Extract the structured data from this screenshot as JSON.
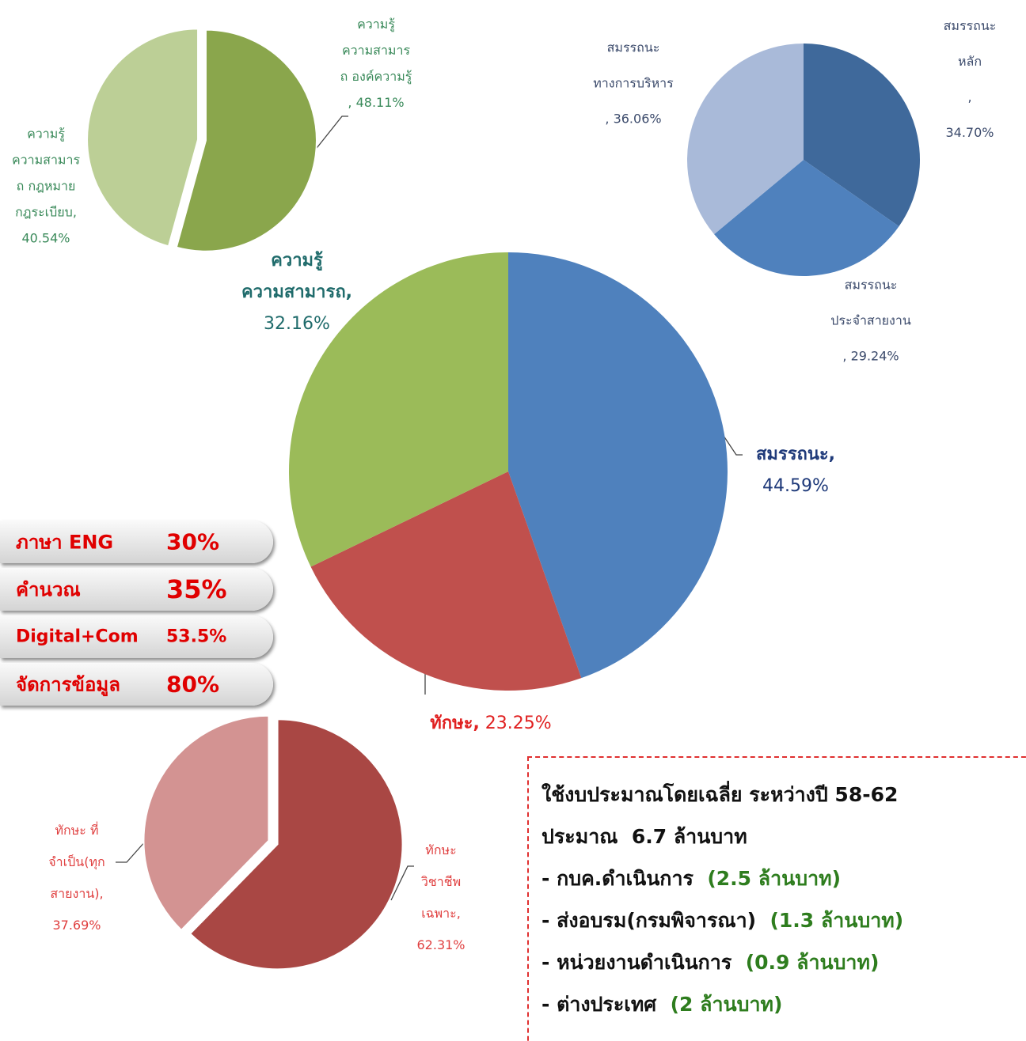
{
  "chart_data": [
    {
      "type": "pie",
      "categories": [
        "ความรู้\nความสามาร\nถ องค์ความรู้",
        "ความรู้\nความสามาร\nถ กฎหมาย\nกฎระเบียบ,"
      ],
      "values": [
        48.11,
        40.54
      ],
      "value_labels": [
        ", 48.11%",
        "40.54%"
      ],
      "colors": [
        "#8aa64c",
        "#bccf96"
      ]
    },
    {
      "type": "pie",
      "categories": [
        "สมรรถนะ หลัก",
        "สมรรถนะ\nประจำสายงาน",
        "สมรรถนะ\nทางการบริหาร"
      ],
      "values": [
        34.7,
        29.24,
        36.06
      ],
      "value_labels": [
        ", 34.70%",
        ", 29.24%",
        ", 36.06%"
      ],
      "colors": [
        "#3f699b",
        "#4f81bd",
        "#a9bad9"
      ]
    },
    {
      "type": "pie",
      "categories": [
        "สมรรถนะ,",
        "ทักษะ,",
        "ความรู้\nความสามารถ,"
      ],
      "values": [
        44.59,
        23.25,
        32.16
      ],
      "value_labels": [
        "44.59%",
        "23.25%",
        "32.16%"
      ],
      "colors": [
        "#4f81bd",
        "#c0504d",
        "#9bbb59"
      ]
    },
    {
      "type": "pie",
      "categories": [
        "ทักษะ\nวิชาชีพ\nเฉพาะ,",
        "ทักษะ ที่\nจำเป็น(ทุก\nสายงาน),"
      ],
      "values": [
        62.31,
        37.69
      ],
      "value_labels": [
        "62.31%",
        "37.69%"
      ],
      "colors": [
        "#a94744",
        "#d39392"
      ]
    }
  ],
  "pills": [
    [
      "ภาษา ENG",
      "30%"
    ],
    [
      "คำนวณ",
      "35%"
    ],
    [
      "Digital+Com",
      "53.5%"
    ],
    [
      "จัดการข้อมูล",
      "80%"
    ]
  ],
  "budget": {
    "heading": [
      "ใช้งบประมาณโดยเฉลี่ย ระหว่างปี 58-62",
      "ประมาณ  6.7 ล้านบาท"
    ],
    "items": [
      [
        "- กบค.ดำเนินการ",
        "(2.5 ล้านบาท)"
      ],
      [
        "- ส่งอบรม(กรมพิจารณา)",
        "(1.3 ล้านบาท)"
      ],
      [
        "- หน่วยงานดำเนินการ",
        "(0.9 ล้านบาท)"
      ],
      [
        "- ต่างประเทศ",
        "(2 ล้านบาท)"
      ]
    ]
  }
}
